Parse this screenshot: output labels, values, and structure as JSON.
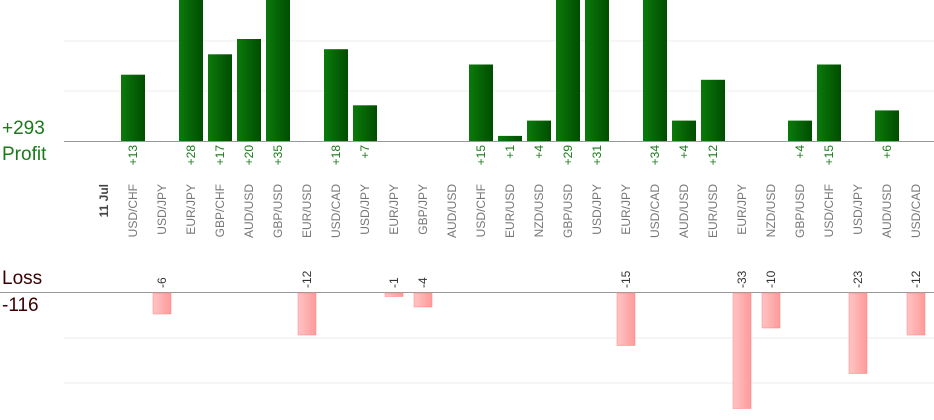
{
  "summary": {
    "profit_total": "+293",
    "profit_label": "Profit",
    "loss_label": "Loss",
    "loss_total": "-116"
  },
  "chart_data": {
    "type": "bar",
    "date_label": "11 Jul",
    "categories": [
      "USD/CHF",
      "USD/JPY",
      "EUR/JPY",
      "GBP/CHF",
      "AUD/USD",
      "GBP/USD",
      "EUR/USD",
      "USD/CAD",
      "USD/JPY",
      "EUR/JPY",
      "GBP/JPY",
      "AUD/USD",
      "USD/CHF",
      "EUR/USD",
      "NZD/USD",
      "GBP/USD",
      "USD/JPY",
      "EUR/JPY",
      "USD/CAD",
      "AUD/USD",
      "EUR/USD",
      "EUR/JPY",
      "NZD/USD",
      "GBP/USD",
      "USD/CHF",
      "USD/JPY",
      "AUD/USD",
      "USD/CAD"
    ],
    "series": [
      {
        "name": "Profit",
        "values": [
          13,
          null,
          28,
          17,
          20,
          35,
          null,
          18,
          7,
          null,
          null,
          null,
          15,
          1,
          4,
          29,
          31,
          null,
          34,
          4,
          12,
          null,
          null,
          4,
          15,
          null,
          6,
          null
        ],
        "labels": [
          "+13",
          "",
          "+28",
          "+17",
          "+20",
          "+35",
          "",
          "+18",
          "+7",
          "",
          "",
          "",
          "+15",
          "+1",
          "+4",
          "+29",
          "+31",
          "",
          "+34",
          "+4",
          "+12",
          "",
          "",
          "+4",
          "+15",
          "",
          "+6",
          ""
        ]
      },
      {
        "name": "Loss",
        "values": [
          null,
          -6,
          null,
          null,
          null,
          null,
          -12,
          null,
          null,
          -1,
          -4,
          null,
          null,
          null,
          null,
          null,
          null,
          -15,
          null,
          null,
          null,
          -33,
          -10,
          null,
          null,
          -23,
          null,
          -12
        ],
        "labels": [
          "",
          "-6",
          "",
          "",
          "",
          "",
          "-12",
          "",
          "",
          "-1",
          "-4",
          "",
          "",
          "",
          "",
          "",
          "",
          "-15",
          "",
          "",
          "",
          "-33",
          "-10",
          "",
          "",
          "-23",
          "",
          "-12"
        ]
      }
    ],
    "colors": {
      "profit": "#006600",
      "loss": "#ffaaaa",
      "profit_label": "#1a7a1a",
      "axis": "#999999",
      "grid": "#ececec"
    }
  }
}
